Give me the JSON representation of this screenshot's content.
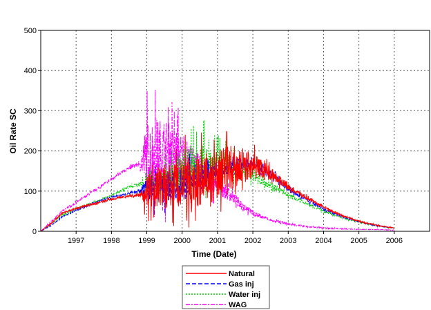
{
  "chart_data": {
    "type": "line",
    "title": "",
    "xlabel": "Time (Date)",
    "ylabel": "Oil Rate SC",
    "xlim": [
      1996.0,
      2007.0
    ],
    "ylim": [
      0,
      500
    ],
    "grid": true,
    "legend_position": "bottom-center",
    "xticks": [
      1997,
      1998,
      1999,
      2000,
      2001,
      2002,
      2003,
      2004,
      2005,
      2006
    ],
    "xtick_labels": [
      "1997",
      "1998",
      "1999",
      "2000",
      "2001",
      "2002",
      "2003",
      "2004",
      "2005",
      "2006"
    ],
    "yticks": [
      0,
      100,
      200,
      300,
      400,
      500
    ],
    "ytick_labels": [
      "0",
      "100",
      "200",
      "300",
      "400",
      "500"
    ],
    "series": [
      {
        "name": "Natural",
        "color": "#ff0000",
        "dash": "solid",
        "x": [
          1996.0,
          1996.3,
          1996.6,
          1997.0,
          1997.5,
          1998.0,
          1998.5,
          1998.8,
          1999.0,
          1999.5,
          2000.0,
          2000.5,
          2001.0,
          2001.5,
          2002.0,
          2002.5,
          2003.0,
          2003.5,
          2004.0,
          2004.5,
          2005.0,
          2005.5,
          2006.0
        ],
        "y": [
          0,
          20,
          45,
          57,
          68,
          80,
          88,
          90,
          100,
          110,
          115,
          125,
          140,
          160,
          165,
          145,
          110,
          85,
          60,
          40,
          25,
          15,
          8
        ],
        "noise": [
          0,
          2,
          2,
          3,
          3,
          3,
          3,
          5,
          50,
          70,
          80,
          80,
          80,
          70,
          40,
          20,
          10,
          6,
          4,
          3,
          2,
          2,
          1
        ]
      },
      {
        "name": "Gas inj",
        "color": "#0000ff",
        "dash": "dashed",
        "x": [
          1996.0,
          1996.3,
          1996.6,
          1997.0,
          1997.5,
          1998.0,
          1998.5,
          1998.8,
          1999.0,
          1999.5,
          2000.0,
          2000.5,
          2001.0,
          2001.5,
          2002.0,
          2002.5,
          2003.0,
          2003.5,
          2004.0,
          2004.5,
          2005.0,
          2005.5,
          2006.0
        ],
        "y": [
          0,
          15,
          35,
          52,
          70,
          85,
          95,
          100,
          105,
          110,
          115,
          130,
          150,
          168,
          170,
          145,
          105,
          80,
          55,
          38,
          24,
          14,
          8
        ],
        "noise": [
          0,
          2,
          2,
          3,
          3,
          3,
          3,
          5,
          40,
          50,
          50,
          40,
          30,
          20,
          15,
          10,
          8,
          5,
          4,
          3,
          2,
          2,
          1
        ]
      },
      {
        "name": "Water inj",
        "color": "#00cc00",
        "dash": "dotted",
        "x": [
          1996.0,
          1996.3,
          1996.6,
          1997.0,
          1997.5,
          1998.0,
          1998.5,
          1998.8,
          1999.0,
          1999.5,
          2000.0,
          2000.5,
          2001.0,
          2001.5,
          2002.0,
          2002.5,
          2003.0,
          2003.5,
          2004.0,
          2004.5,
          2005.0,
          2005.5,
          2006.0
        ],
        "y": [
          0,
          18,
          40,
          55,
          72,
          90,
          110,
          118,
          120,
          125,
          140,
          165,
          170,
          160,
          140,
          115,
          90,
          70,
          50,
          35,
          22,
          14,
          8
        ],
        "noise": [
          0,
          2,
          2,
          3,
          3,
          3,
          4,
          6,
          20,
          40,
          80,
          80,
          50,
          35,
          20,
          12,
          8,
          5,
          4,
          3,
          2,
          2,
          1
        ]
      },
      {
        "name": "WAG",
        "color": "#ff00ff",
        "dash": "dashdot",
        "x": [
          1996.0,
          1996.3,
          1996.6,
          1997.0,
          1997.5,
          1998.0,
          1998.5,
          1998.8,
          1999.0,
          1999.5,
          2000.0,
          2000.5,
          2001.0,
          2001.5,
          2002.0,
          2002.5,
          2003.0,
          2003.5,
          2004.0,
          2005.0,
          2006.0
        ],
        "y": [
          0,
          25,
          50,
          72,
          100,
          130,
          158,
          168,
          185,
          195,
          180,
          150,
          115,
          80,
          45,
          28,
          18,
          12,
          8,
          5,
          3
        ],
        "noise": [
          0,
          2,
          2,
          3,
          3,
          4,
          5,
          8,
          120,
          110,
          80,
          50,
          30,
          15,
          8,
          4,
          3,
          2,
          2,
          1,
          1
        ]
      }
    ]
  }
}
